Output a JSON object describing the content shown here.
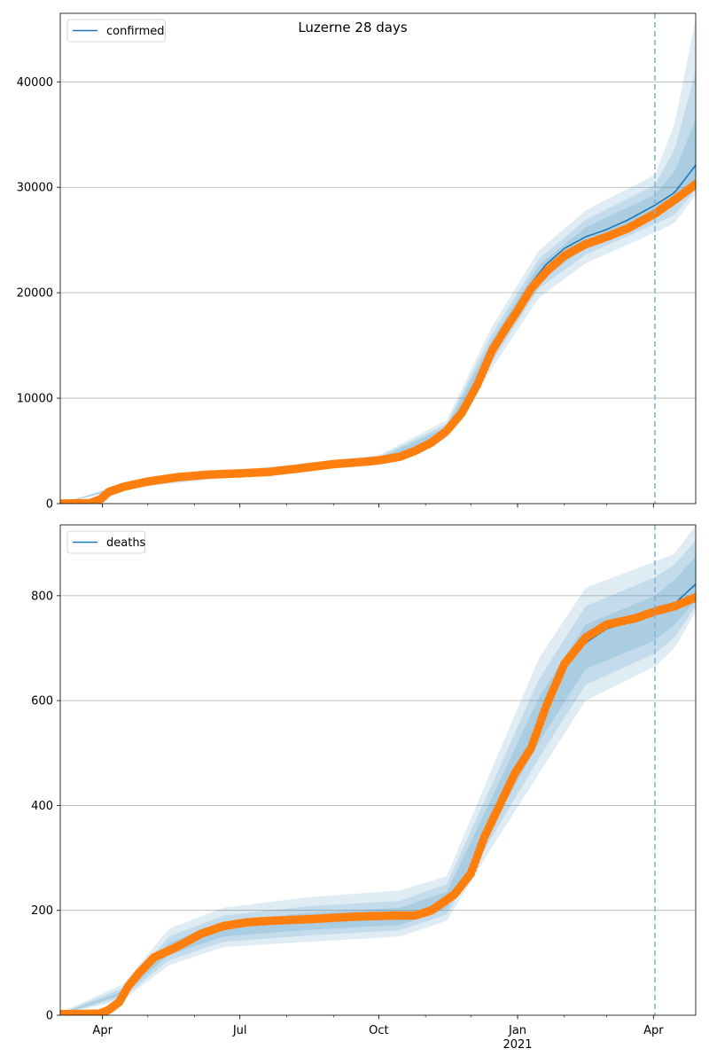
{
  "chart_data": {
    "type": "line",
    "title": "Luzerne 28 days",
    "x_axis": {
      "ticks": [
        {
          "date": "2020-04-01",
          "label": "Apr",
          "sublabel": ""
        },
        {
          "date": "2020-07-01",
          "label": "Jul",
          "sublabel": ""
        },
        {
          "date": "2020-10-01",
          "label": "Oct",
          "sublabel": ""
        },
        {
          "date": "2021-01-01",
          "label": "Jan",
          "sublabel": "2021"
        },
        {
          "date": "2021-04-01",
          "label": "Apr",
          "sublabel": ""
        }
      ],
      "range": [
        "2020-03-04",
        "2021-04-29"
      ]
    },
    "forecast_start": "2021-04-02",
    "colors": {
      "model_line": "#1f77b4",
      "observed": "#ff7f0e",
      "band": "#1f77b4",
      "forecast_line": "#7fb2d5",
      "grid": "#b0b0b0"
    },
    "panels": [
      {
        "name": "confirmed",
        "legend": "confirmed",
        "ylim": [
          0,
          46500
        ],
        "yticks": [
          0,
          10000,
          20000,
          30000,
          40000
        ],
        "grid": true,
        "observed_knots": [
          [
            "2020-03-04",
            0
          ],
          [
            "2020-03-24",
            50
          ],
          [
            "2020-03-31",
            450
          ],
          [
            "2020-04-05",
            1100
          ],
          [
            "2020-04-15",
            1600
          ],
          [
            "2020-05-01",
            2100
          ],
          [
            "2020-05-20",
            2500
          ],
          [
            "2020-06-10",
            2750
          ],
          [
            "2020-07-01",
            2870
          ],
          [
            "2020-07-20",
            3000
          ],
          [
            "2020-08-10",
            3350
          ],
          [
            "2020-09-01",
            3750
          ],
          [
            "2020-09-20",
            3950
          ],
          [
            "2020-10-01",
            4100
          ],
          [
            "2020-10-15",
            4450
          ],
          [
            "2020-10-25",
            5000
          ],
          [
            "2020-11-05",
            5800
          ],
          [
            "2020-11-15",
            6900
          ],
          [
            "2020-11-25",
            8600
          ],
          [
            "2020-12-05",
            11200
          ],
          [
            "2020-12-15",
            14500
          ],
          [
            "2020-12-25",
            16800
          ],
          [
            "2021-01-01",
            18300
          ],
          [
            "2021-01-10",
            20400
          ],
          [
            "2021-01-20",
            22000
          ],
          [
            "2021-02-01",
            23500
          ],
          [
            "2021-02-15",
            24600
          ],
          [
            "2021-03-01",
            25300
          ],
          [
            "2021-03-15",
            26100
          ],
          [
            "2021-04-02",
            27500
          ],
          [
            "2021-04-15",
            28800
          ],
          [
            "2021-04-29",
            30300
          ]
        ],
        "model_knots": [
          [
            "2020-03-04",
            0
          ],
          [
            "2020-03-24",
            50
          ],
          [
            "2020-03-31",
            450
          ],
          [
            "2020-04-05",
            1100
          ],
          [
            "2020-04-15",
            1650
          ],
          [
            "2020-05-01",
            2150
          ],
          [
            "2020-05-20",
            2500
          ],
          [
            "2020-06-10",
            2750
          ],
          [
            "2020-07-01",
            2870
          ],
          [
            "2020-07-20",
            3000
          ],
          [
            "2020-08-10",
            3350
          ],
          [
            "2020-09-01",
            3750
          ],
          [
            "2020-09-20",
            3950
          ],
          [
            "2020-10-01",
            4150
          ],
          [
            "2020-10-15",
            4500
          ],
          [
            "2020-10-25",
            5050
          ],
          [
            "2020-11-05",
            5850
          ],
          [
            "2020-11-15",
            7000
          ],
          [
            "2020-11-25",
            8800
          ],
          [
            "2020-12-05",
            11400
          ],
          [
            "2020-12-15",
            14700
          ],
          [
            "2020-12-25",
            17200
          ],
          [
            "2021-01-01",
            18800
          ],
          [
            "2021-01-10",
            20900
          ],
          [
            "2021-01-20",
            22700
          ],
          [
            "2021-02-01",
            24200
          ],
          [
            "2021-02-15",
            25300
          ],
          [
            "2021-03-01",
            26000
          ],
          [
            "2021-03-15",
            26900
          ],
          [
            "2021-04-02",
            28300
          ],
          [
            "2021-04-15",
            29500
          ],
          [
            "2021-04-29",
            32100
          ]
        ],
        "bands": [
          {
            "opacity": 0.14,
            "knots": [
              [
                "2020-03-04",
                0,
                0
              ],
              [
                "2020-04-15",
                1400,
                1900
              ],
              [
                "2020-07-01",
                2600,
                3200
              ],
              [
                "2020-10-01",
                3700,
                4600
              ],
              [
                "2020-11-15",
                6200,
                7900
              ],
              [
                "2020-12-15",
                12800,
                16800
              ],
              [
                "2021-01-15",
                19500,
                24000
              ],
              [
                "2021-02-15",
                22800,
                27800
              ],
              [
                "2021-04-02",
                25700,
                31200
              ],
              [
                "2021-04-15",
                26600,
                36000
              ],
              [
                "2021-04-29",
                29300,
                46000
              ]
            ]
          },
          {
            "opacity": 0.14,
            "knots": [
              [
                "2020-03-04",
                0,
                0
              ],
              [
                "2020-04-15",
                1480,
                1820
              ],
              [
                "2020-07-01",
                2700,
                3050
              ],
              [
                "2020-10-01",
                3850,
                4450
              ],
              [
                "2020-11-15",
                6500,
                7550
              ],
              [
                "2020-12-15",
                13400,
                16100
              ],
              [
                "2021-01-15",
                20400,
                23200
              ],
              [
                "2021-02-15",
                23600,
                26900
              ],
              [
                "2021-04-02",
                26500,
                30200
              ],
              [
                "2021-04-15",
                27400,
                33600
              ],
              [
                "2021-04-29",
                29800,
                41000
              ]
            ]
          },
          {
            "opacity": 0.14,
            "knots": [
              [
                "2020-03-04",
                0,
                0
              ],
              [
                "2020-04-15",
                1560,
                1740
              ],
              [
                "2020-07-01",
                2780,
                2960
              ],
              [
                "2020-10-01",
                3990,
                4310
              ],
              [
                "2020-11-15",
                6750,
                7250
              ],
              [
                "2020-12-15",
                14000,
                15500
              ],
              [
                "2021-01-15",
                21100,
                22600
              ],
              [
                "2021-02-15",
                24300,
                26200
              ],
              [
                "2021-04-02",
                27300,
                29300
              ],
              [
                "2021-04-15",
                28300,
                31500
              ],
              [
                "2021-04-29",
                30300,
                36500
              ]
            ]
          }
        ]
      },
      {
        "name": "deaths",
        "legend": "deaths",
        "ylim": [
          0,
          935
        ],
        "yticks": [
          0,
          200,
          400,
          600,
          800
        ],
        "grid": true,
        "observed_knots": [
          [
            "2020-03-04",
            2
          ],
          [
            "2020-03-30",
            3
          ],
          [
            "2020-04-05",
            10
          ],
          [
            "2020-04-12",
            25
          ],
          [
            "2020-04-18",
            55
          ],
          [
            "2020-04-25",
            80
          ],
          [
            "2020-05-05",
            110
          ],
          [
            "2020-05-20",
            130
          ],
          [
            "2020-06-05",
            155
          ],
          [
            "2020-06-20",
            170
          ],
          [
            "2020-07-05",
            177
          ],
          [
            "2020-07-20",
            180
          ],
          [
            "2020-08-15",
            183
          ],
          [
            "2020-09-15",
            188
          ],
          [
            "2020-10-10",
            190
          ],
          [
            "2020-10-25",
            190
          ],
          [
            "2020-11-05",
            200
          ],
          [
            "2020-11-20",
            230
          ],
          [
            "2020-12-01",
            270
          ],
          [
            "2020-12-10",
            340
          ],
          [
            "2020-12-20",
            400
          ],
          [
            "2020-12-30",
            460
          ],
          [
            "2021-01-10",
            510
          ],
          [
            "2021-01-20",
            590
          ],
          [
            "2021-02-01",
            670
          ],
          [
            "2021-02-15",
            720
          ],
          [
            "2021-03-01",
            745
          ],
          [
            "2021-03-20",
            757
          ],
          [
            "2021-04-02",
            770
          ],
          [
            "2021-04-15",
            780
          ],
          [
            "2021-04-29",
            797
          ]
        ],
        "model_knots": [
          [
            "2020-03-04",
            2
          ],
          [
            "2020-03-30",
            3
          ],
          [
            "2020-04-05",
            10
          ],
          [
            "2020-04-12",
            28
          ],
          [
            "2020-04-20",
            60
          ],
          [
            "2020-05-01",
            95
          ],
          [
            "2020-05-15",
            125
          ],
          [
            "2020-06-01",
            148
          ],
          [
            "2020-06-20",
            165
          ],
          [
            "2020-07-10",
            172
          ],
          [
            "2020-08-10",
            178
          ],
          [
            "2020-09-15",
            183
          ],
          [
            "2020-10-10",
            187
          ],
          [
            "2020-10-25",
            190
          ],
          [
            "2020-11-05",
            198
          ],
          [
            "2020-11-20",
            225
          ],
          [
            "2020-12-01",
            268
          ],
          [
            "2020-12-10",
            330
          ],
          [
            "2020-12-20",
            398
          ],
          [
            "2020-12-30",
            460
          ],
          [
            "2021-01-10",
            520
          ],
          [
            "2021-01-20",
            590
          ],
          [
            "2021-02-01",
            660
          ],
          [
            "2021-02-15",
            710
          ],
          [
            "2021-03-01",
            737
          ],
          [
            "2021-03-20",
            753
          ],
          [
            "2021-04-02",
            765
          ],
          [
            "2021-04-15",
            785
          ],
          [
            "2021-04-29",
            822
          ]
        ],
        "bands": [
          {
            "opacity": 0.14,
            "knots": [
              [
                "2020-03-04",
                0,
                5
              ],
              [
                "2020-04-15",
                30,
                60
              ],
              [
                "2020-05-15",
                95,
                165
              ],
              [
                "2020-06-20",
                130,
                205
              ],
              [
                "2020-08-15",
                140,
                225
              ],
              [
                "2020-10-15",
                150,
                238
              ],
              [
                "2020-11-15",
                180,
                265
              ],
              [
                "2020-12-15",
                320,
                470
              ],
              [
                "2021-01-15",
                460,
                680
              ],
              [
                "2021-02-15",
                600,
                815
              ],
              [
                "2021-04-02",
                665,
                865
              ],
              [
                "2021-04-15",
                700,
                880
              ],
              [
                "2021-04-29",
                770,
                935
              ]
            ]
          },
          {
            "opacity": 0.14,
            "knots": [
              [
                "2020-03-04",
                1,
                4
              ],
              [
                "2020-04-15",
                35,
                52
              ],
              [
                "2020-05-15",
                105,
                150
              ],
              [
                "2020-06-20",
                140,
                190
              ],
              [
                "2020-08-15",
                152,
                208
              ],
              [
                "2020-10-15",
                162,
                218
              ],
              [
                "2020-11-15",
                192,
                250
              ],
              [
                "2020-12-15",
                340,
                440
              ],
              [
                "2021-01-15",
                490,
                640
              ],
              [
                "2021-02-15",
                630,
                780
              ],
              [
                "2021-04-02",
                690,
                835
              ],
              [
                "2021-04-15",
                720,
                860
              ],
              [
                "2021-04-29",
                780,
                905
              ]
            ]
          },
          {
            "opacity": 0.14,
            "knots": [
              [
                "2020-03-04",
                1,
                3
              ],
              [
                "2020-04-15",
                40,
                46
              ],
              [
                "2020-05-15",
                115,
                138
              ],
              [
                "2020-06-20",
                150,
                178
              ],
              [
                "2020-08-15",
                163,
                195
              ],
              [
                "2020-10-15",
                172,
                205
              ],
              [
                "2020-11-15",
                203,
                235
              ],
              [
                "2020-12-15",
                360,
                415
              ],
              [
                "2021-01-15",
                520,
                605
              ],
              [
                "2021-02-15",
                660,
                745
              ],
              [
                "2021-04-02",
                715,
                800
              ],
              [
                "2021-04-15",
                745,
                830
              ],
              [
                "2021-04-29",
                790,
                875
              ]
            ]
          }
        ]
      }
    ]
  }
}
